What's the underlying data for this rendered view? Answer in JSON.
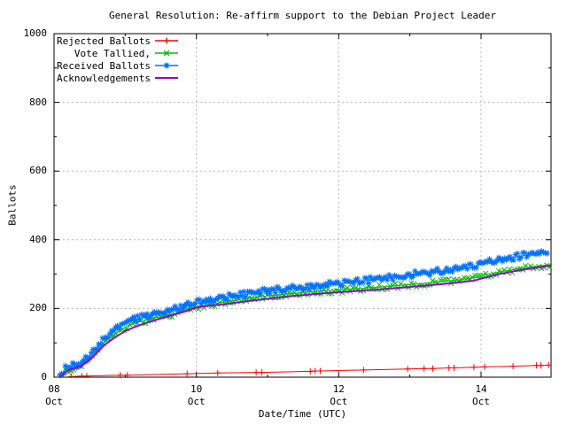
{
  "window": {
    "kind": "gnuplot-chart-image",
    "bg": "#ffffff"
  },
  "title": "General Resolution: Re-affirm support to the Debian Project Leader",
  "axes": {
    "x_label": "Date/Time (UTC)",
    "y_label": "Ballots",
    "y_ticks": [
      "0",
      "200",
      "400",
      "600",
      "800",
      "1000"
    ],
    "x_ticks": [
      {
        "line1": "08",
        "line2": "Oct"
      },
      {
        "line1": "10",
        "line2": "Oct"
      },
      {
        "line1": "12",
        "line2": "Oct"
      },
      {
        "line1": "14",
        "line2": "Oct"
      }
    ]
  },
  "legend": {
    "position": "top-left",
    "items": [
      {
        "label": "Rejected Ballots",
        "color": "#ff0000",
        "marker": "plus"
      },
      {
        "label": "Vote Tallied,",
        "color": "#00c000",
        "marker": "cross"
      },
      {
        "label": "Received Ballots",
        "color": "#0072ff",
        "marker": "star"
      },
      {
        "label": "Acknowledgements",
        "color": "#9900cc",
        "marker": "none"
      }
    ]
  },
  "chart_data": {
    "type": "line",
    "title": "General Resolution: Re-affirm support to the Debian Project Leader",
    "xlabel": "Date/Time (UTC)",
    "ylabel": "Ballots",
    "ylim": [
      0,
      1000
    ],
    "y_major_ticks": [
      0,
      200,
      400,
      600,
      800,
      1000
    ],
    "y_minor_ticks": [
      100,
      300,
      500,
      700,
      900
    ],
    "x_unit": "days since 08 Oct 00:00 UTC",
    "xlim": [
      0,
      6.983
    ],
    "x_major_ticks": [
      {
        "pos": 0,
        "label": "08 Oct"
      },
      {
        "pos": 2,
        "label": "10 Oct"
      },
      {
        "pos": 4,
        "label": "12 Oct"
      },
      {
        "pos": 6,
        "label": "14 Oct"
      }
    ],
    "x_minor_ticks": [
      1,
      3,
      5
    ],
    "grid": {
      "on": true,
      "color": "#b8b8b8",
      "dash": "2,3",
      "x_lines": [
        2,
        4,
        6
      ],
      "y_lines": [
        200,
        400,
        600,
        800
      ]
    },
    "series": [
      {
        "name": "Rejected Ballots",
        "color": "#ff0000",
        "marker": "plus",
        "marker_mode": "points",
        "line_width": 1,
        "points": [
          [
            0.24,
            2
          ],
          [
            0.39,
            3
          ],
          [
            0.46,
            3
          ],
          [
            0.93,
            6
          ],
          [
            1.03,
            6
          ],
          [
            1.87,
            10
          ],
          [
            2.3,
            12
          ],
          [
            2.84,
            14
          ],
          [
            2.92,
            14
          ],
          [
            3.6,
            17
          ],
          [
            3.67,
            18
          ],
          [
            3.74,
            18
          ],
          [
            4.35,
            21
          ],
          [
            4.97,
            24
          ],
          [
            5.2,
            25
          ],
          [
            5.32,
            25
          ],
          [
            5.55,
            27
          ],
          [
            5.62,
            27
          ],
          [
            5.9,
            29
          ],
          [
            6.05,
            30
          ],
          [
            6.45,
            32
          ],
          [
            6.78,
            34
          ],
          [
            6.84,
            34
          ],
          [
            6.95,
            35
          ]
        ]
      },
      {
        "name": "Vote Tallied,",
        "color": "#00c000",
        "marker": "cross",
        "marker_mode": "dense",
        "line_width": 1,
        "points": [
          [
            0.09,
            0
          ],
          [
            0.12,
            8
          ],
          [
            0.15,
            16
          ],
          [
            0.2,
            23
          ],
          [
            0.26,
            27
          ],
          [
            0.33,
            31
          ],
          [
            0.4,
            37
          ],
          [
            0.46,
            48
          ],
          [
            0.52,
            60
          ],
          [
            0.58,
            73
          ],
          [
            0.64,
            87
          ],
          [
            0.71,
            101
          ],
          [
            0.79,
            116
          ],
          [
            0.87,
            128
          ],
          [
            0.95,
            139
          ],
          [
            1.03,
            148
          ],
          [
            1.13,
            157
          ],
          [
            1.25,
            164
          ],
          [
            1.38,
            171
          ],
          [
            1.52,
            177
          ],
          [
            1.67,
            184
          ],
          [
            1.8,
            193
          ],
          [
            1.92,
            200
          ],
          [
            2.05,
            206
          ],
          [
            2.2,
            212
          ],
          [
            2.4,
            219
          ],
          [
            2.6,
            226
          ],
          [
            2.8,
            232
          ],
          [
            3.0,
            237
          ],
          [
            3.25,
            242
          ],
          [
            3.5,
            247
          ],
          [
            3.75,
            251
          ],
          [
            4.0,
            254
          ],
          [
            4.3,
            258
          ],
          [
            4.6,
            263
          ],
          [
            4.9,
            268
          ],
          [
            5.2,
            273
          ],
          [
            5.5,
            279
          ],
          [
            5.75,
            285
          ],
          [
            5.95,
            291
          ],
          [
            6.1,
            300
          ],
          [
            6.3,
            308
          ],
          [
            6.5,
            315
          ],
          [
            6.7,
            321
          ],
          [
            6.9,
            326
          ],
          [
            6.98,
            328
          ]
        ]
      },
      {
        "name": "Received Ballots",
        "color": "#0072ff",
        "marker": "star",
        "marker_mode": "dense",
        "line_width": 1,
        "points": [
          [
            0.08,
            0
          ],
          [
            0.1,
            6
          ],
          [
            0.12,
            14
          ],
          [
            0.15,
            22
          ],
          [
            0.18,
            27
          ],
          [
            0.22,
            30
          ],
          [
            0.28,
            33
          ],
          [
            0.35,
            37
          ],
          [
            0.42,
            44
          ],
          [
            0.47,
            55
          ],
          [
            0.52,
            68
          ],
          [
            0.58,
            82
          ],
          [
            0.63,
            95
          ],
          [
            0.7,
            110
          ],
          [
            0.78,
            125
          ],
          [
            0.85,
            136
          ],
          [
            0.93,
            147
          ],
          [
            1.0,
            156
          ],
          [
            1.1,
            165
          ],
          [
            1.2,
            172
          ],
          [
            1.32,
            178
          ],
          [
            1.45,
            184
          ],
          [
            1.6,
            191
          ],
          [
            1.75,
            200
          ],
          [
            1.88,
            208
          ],
          [
            2.0,
            215
          ],
          [
            2.15,
            222
          ],
          [
            2.3,
            228
          ],
          [
            2.5,
            235
          ],
          [
            2.7,
            241
          ],
          [
            2.9,
            247
          ],
          [
            3.1,
            252
          ],
          [
            3.35,
            258
          ],
          [
            3.6,
            263
          ],
          [
            3.8,
            268
          ],
          [
            4.0,
            272
          ],
          [
            4.25,
            278
          ],
          [
            4.5,
            284
          ],
          [
            4.75,
            290
          ],
          [
            5.0,
            297
          ],
          [
            5.25,
            303
          ],
          [
            5.5,
            309
          ],
          [
            5.7,
            314
          ],
          [
            5.85,
            319
          ],
          [
            5.95,
            325
          ],
          [
            6.05,
            332
          ],
          [
            6.2,
            338
          ],
          [
            6.4,
            346
          ],
          [
            6.6,
            354
          ],
          [
            6.8,
            361
          ],
          [
            6.95,
            367
          ]
        ]
      },
      {
        "name": "Acknowledgements",
        "color": "#9900cc",
        "marker": "none",
        "marker_mode": "none",
        "line_width": 2,
        "points": [
          [
            0.09,
            0
          ],
          [
            0.13,
            8
          ],
          [
            0.17,
            16
          ],
          [
            0.22,
            22
          ],
          [
            0.3,
            27
          ],
          [
            0.38,
            32
          ],
          [
            0.46,
            44
          ],
          [
            0.54,
            58
          ],
          [
            0.62,
            75
          ],
          [
            0.7,
            92
          ],
          [
            0.8,
            108
          ],
          [
            0.9,
            122
          ],
          [
            1.0,
            134
          ],
          [
            1.12,
            145
          ],
          [
            1.25,
            155
          ],
          [
            1.4,
            165
          ],
          [
            1.55,
            174
          ],
          [
            1.7,
            183
          ],
          [
            1.85,
            192
          ],
          [
            2.0,
            203
          ],
          [
            2.2,
            208
          ],
          [
            2.45,
            214
          ],
          [
            2.7,
            221
          ],
          [
            3.0,
            228
          ],
          [
            3.3,
            235
          ],
          [
            3.6,
            241
          ],
          [
            3.9,
            246
          ],
          [
            4.2,
            250
          ],
          [
            4.55,
            255
          ],
          [
            4.9,
            261
          ],
          [
            5.25,
            267
          ],
          [
            5.6,
            274
          ],
          [
            5.9,
            281
          ],
          [
            6.05,
            290
          ],
          [
            6.25,
            300
          ],
          [
            6.5,
            310
          ],
          [
            6.75,
            318
          ],
          [
            6.98,
            325
          ]
        ]
      }
    ]
  }
}
